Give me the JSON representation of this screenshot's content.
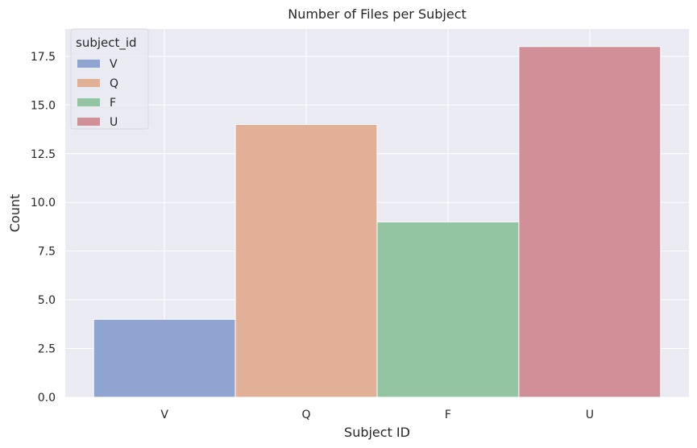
{
  "chart_data": {
    "type": "bar",
    "title": "Number of Files per Subject",
    "xlabel": "Subject ID",
    "ylabel": "Count",
    "categories": [
      "V",
      "Q",
      "F",
      "U"
    ],
    "values": [
      4,
      14,
      9,
      18
    ],
    "colors": [
      "#8fa4d0",
      "#e1b097",
      "#94c5a3",
      "#d18f98"
    ],
    "ylim": [
      0,
      18.9
    ],
    "yticks": [
      0.0,
      2.5,
      5.0,
      7.5,
      10.0,
      12.5,
      15.0,
      17.5
    ],
    "ytick_labels": [
      "0.0",
      "2.5",
      "5.0",
      "7.5",
      "10.0",
      "12.5",
      "15.0",
      "17.5"
    ],
    "grid": true,
    "background": "#eaeaf2",
    "legend": {
      "title": "subject_id",
      "placement": "top-left",
      "entries": [
        "V",
        "Q",
        "F",
        "U"
      ]
    }
  }
}
